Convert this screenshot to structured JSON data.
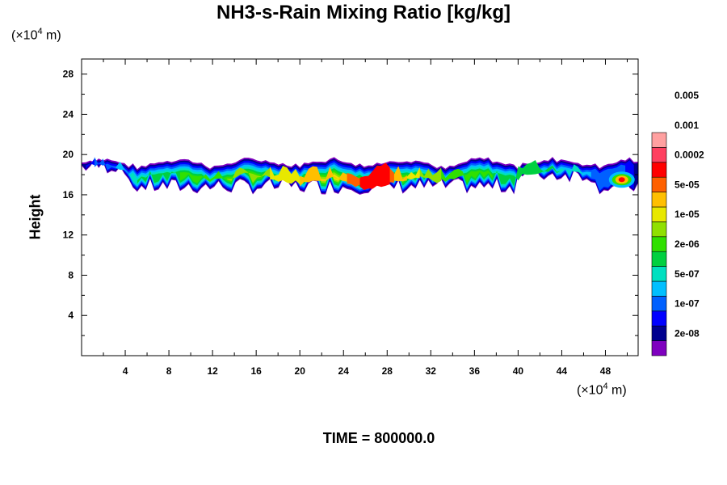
{
  "chart_data": {
    "type": "heatmap",
    "title": "NH3-s-Rain Mixing Ratio [kg/kg]",
    "ylabel": "Height",
    "xunit_prefix": "(×10",
    "xunit_exp": "4",
    "xunit_suffix": " m)",
    "yunit_prefix": "(×10",
    "yunit_exp": "4",
    "yunit_suffix": " m)",
    "xlim": [
      0,
      51
    ],
    "ylim": [
      0,
      29.5
    ],
    "x_ticks": [
      4,
      8,
      12,
      16,
      20,
      24,
      28,
      32,
      36,
      40,
      44,
      48
    ],
    "y_ticks": [
      4,
      8,
      12,
      16,
      20,
      24,
      28
    ],
    "colorbar": {
      "levels": [
        "2e-08",
        "1e-07",
        "5e-07",
        "2e-06",
        "1e-05",
        "5e-05",
        "0.0002",
        "0.001",
        "0.005"
      ],
      "colors": [
        "#7f00bf",
        "#00008f",
        "#0000ff",
        "#0060ff",
        "#00bfff",
        "#00e0c0",
        "#00d040",
        "#30e000",
        "#90e000",
        "#e8e800",
        "#ffbf00",
        "#ff6000",
        "#ff0000",
        "#ff4060",
        "#ffa0a0"
      ]
    },
    "layer": {
      "top_height_approx": 19.5,
      "bottom_height_approx": 16,
      "peak_region_x": [
        24,
        29
      ],
      "peak_region_height": 17.5
    },
    "time_label": "TIME = 800000.0"
  }
}
